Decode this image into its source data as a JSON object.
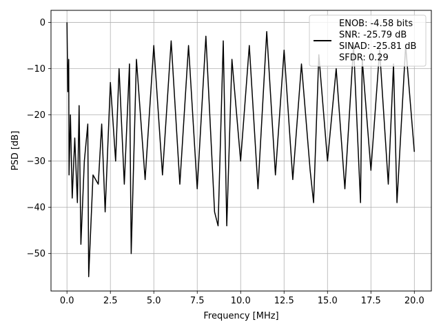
{
  "chart_data": {
    "type": "line",
    "title": "",
    "xlabel": "Frequency [MHz]",
    "ylabel": "PSD [dB]",
    "xlim": [
      -0.92,
      20.98
    ],
    "ylim": [
      -58.1,
      2.6
    ],
    "x_ticks": [
      0.0,
      2.5,
      5.0,
      7.5,
      10.0,
      12.5,
      15.0,
      17.5,
      20.0
    ],
    "x_tick_labels": [
      "0.0",
      "2.5",
      "5.0",
      "7.5",
      "10.0",
      "12.5",
      "15.0",
      "17.5",
      "20.0"
    ],
    "y_ticks": [
      0,
      -10,
      -20,
      -30,
      -40,
      -50
    ],
    "y_tick_labels": [
      "0",
      "−10",
      "−20",
      "−30",
      "−40",
      "−50"
    ],
    "grid": true,
    "legend_position": "top-right",
    "line_color": "#000000",
    "series": [
      {
        "x": [
          0.0,
          0.05,
          0.1,
          0.12,
          0.2,
          0.3,
          0.45,
          0.6,
          0.7,
          0.8,
          1.0,
          1.2,
          1.25,
          1.5,
          1.8,
          2.0,
          2.2,
          2.5,
          2.8,
          3.0,
          3.3,
          3.6,
          3.7,
          4.0,
          4.5,
          5.0,
          5.5,
          6.0,
          6.5,
          7.0,
          7.5,
          8.0,
          8.5,
          8.7,
          9.0,
          9.2,
          9.5,
          10.0,
          10.5,
          11.0,
          11.5,
          12.0,
          12.5,
          13.0,
          13.5,
          14.0,
          14.2,
          14.5,
          15.0,
          15.5,
          16.0,
          16.5,
          16.9,
          17.0,
          17.5,
          18.0,
          18.5,
          18.8,
          19.0,
          19.5,
          20.0
        ],
        "y": [
          0,
          -15,
          -8,
          -33,
          -20,
          -38,
          -25,
          -39,
          -18,
          -48,
          -30,
          -22,
          -55,
          -33,
          -35,
          -22,
          -41,
          -13,
          -30,
          -10,
          -35,
          -9,
          -50,
          -8,
          -34,
          -5,
          -33,
          -4,
          -35,
          -5,
          -36,
          -3,
          -41,
          -44,
          -4,
          -44,
          -8,
          -30,
          -5,
          -36,
          -2,
          -33,
          -6,
          -34,
          -9,
          -32,
          -39,
          -7,
          -30,
          -10,
          -36,
          -5,
          -39,
          -8,
          -32,
          -6,
          -35,
          -9,
          -39,
          -5,
          -28
        ]
      }
    ],
    "legend": {
      "label": "ENOB: -4.58 bits\nSNR: -25.79 dB\nSINAD: -25.81 dB\nSFDR: 0.29",
      "lines": [
        "ENOB: -4.58 bits",
        "SNR: -25.79 dB",
        "SINAD: -25.81 dB",
        "SFDR: 0.29"
      ]
    }
  }
}
